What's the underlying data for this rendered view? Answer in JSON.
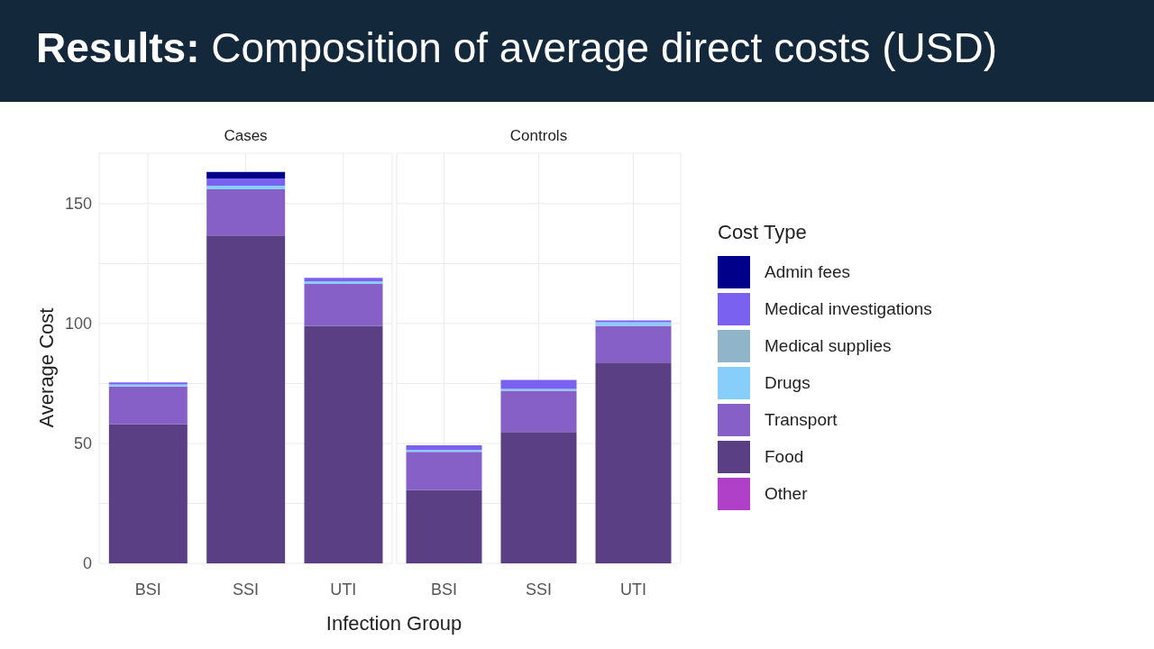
{
  "chart_data": [
    {
      "type": "bar",
      "title": "Results: Composition of average direct costs (USD)",
      "subtitle": "Cases",
      "xlabel": "Infection Group",
      "ylabel": "Average Cost",
      "stacked": true,
      "grid": true,
      "legend": "right",
      "legend_title": "Cost Type",
      "categories": [
        "BSI",
        "SSI",
        "UTI"
      ],
      "ylim": [
        0,
        171
      ],
      "yticks": [
        0,
        {
          "value": 25,
          "label": null
        },
        50,
        {
          "value": 75,
          "label": null
        },
        100,
        {
          "value": 125,
          "label": null
        },
        150
      ],
      "series": [
        {
          "name": "Other",
          "color": "#b040c8",
          "values": [
            0,
            0,
            0
          ]
        },
        {
          "name": "Food",
          "color": "#5a3f85",
          "values": [
            58,
            136.7,
            99
          ]
        },
        {
          "name": "Transport",
          "color": "#8660c6",
          "values": [
            15.8,
            19.3,
            17.5
          ]
        },
        {
          "name": "Drugs",
          "color": "#87cefa",
          "values": [
            0.8,
            1.5,
            1
          ]
        },
        {
          "name": "Medical supplies",
          "color": "#90b4c8",
          "values": [
            0,
            0,
            0
          ]
        },
        {
          "name": "Medical investigations",
          "color": "#7b61f0",
          "values": [
            0.8,
            3,
            1.5
          ]
        },
        {
          "name": "Admin fees",
          "color": "#00008b",
          "values": [
            0,
            2.7,
            0
          ]
        }
      ]
    },
    {
      "type": "bar",
      "subtitle": "Controls",
      "stacked": true,
      "grid": true,
      "tick_labels": "x",
      "categories": [
        "BSI",
        "SSI",
        "UTI"
      ],
      "ylim": [
        0,
        171
      ],
      "yticks": [
        0,
        {
          "value": 25,
          "label": null
        },
        50,
        {
          "value": 75,
          "label": null
        },
        100,
        {
          "value": 125,
          "label": null
        },
        150
      ],
      "series": [
        {
          "color": "#b040c8",
          "values": [
            0,
            0,
            0
          ]
        },
        {
          "color": "#5a3f85",
          "values": [
            30.5,
            54.8,
            83.7
          ]
        },
        {
          "color": "#8660c6",
          "values": [
            16,
            17.2,
            15.3
          ]
        },
        {
          "color": "#87cefa",
          "values": [
            0.8,
            0.7,
            1.5
          ]
        },
        {
          "color": "#90b4c8",
          "values": [
            0,
            0,
            0
          ]
        },
        {
          "color": "#7b61f0",
          "values": [
            1.9,
            3.8,
            0.8
          ]
        },
        {
          "color": "#00008b",
          "values": [
            0,
            0,
            0
          ]
        }
      ]
    }
  ]
}
